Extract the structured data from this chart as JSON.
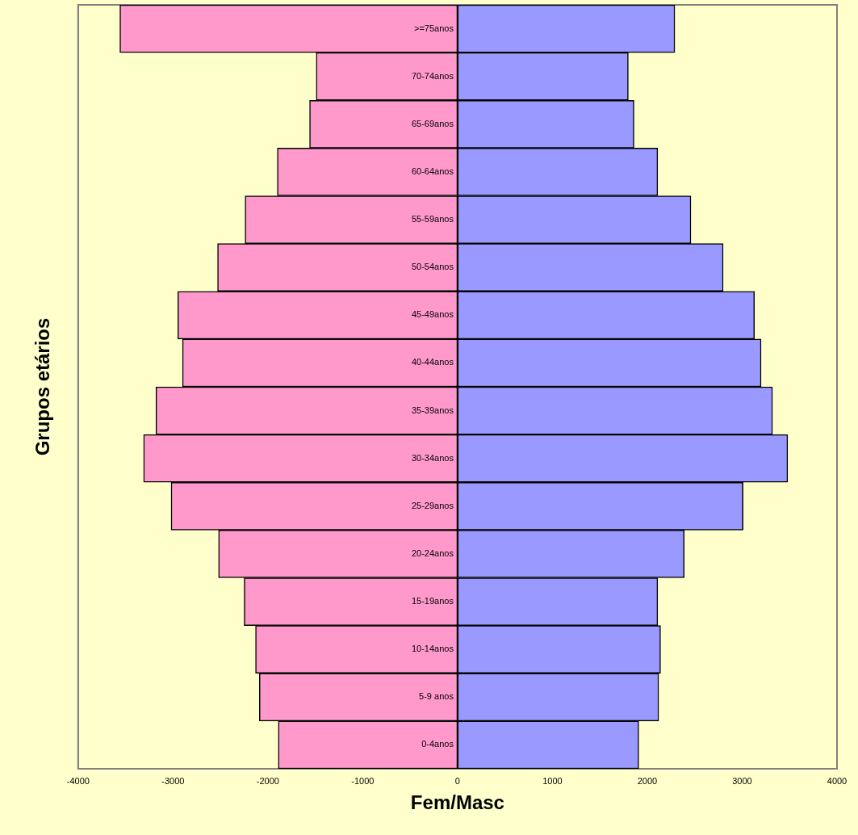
{
  "chart_data": {
    "type": "bar",
    "orientation": "horizontal",
    "stacked": true,
    "xlabel": "Fem/Masc",
    "ylabel": "Grupos etários",
    "categories": [
      ">=75anos",
      "70-74anos",
      "65-69anos",
      "60-64anos",
      "55-59anos",
      "50-54anos",
      "45-49anos",
      "40-44anos",
      "35-39anos",
      "30-34anos",
      "25-29anos",
      "20-24anos",
      "15-19anos",
      "10-14anos",
      "5-9 anos",
      "0-4anos"
    ],
    "series": [
      {
        "color": "#ff99cc",
        "values": [
          -3560,
          -1490,
          -1560,
          -1900,
          -2240,
          -2530,
          -2950,
          -2900,
          -3180,
          -3310,
          -3020,
          -2520,
          -2250,
          -2130,
          -2090,
          -1890
        ]
      },
      {
        "color": "#9999ff",
        "values": [
          2290,
          1800,
          1860,
          2110,
          2460,
          2800,
          3130,
          3200,
          3320,
          3480,
          3010,
          2390,
          2110,
          2140,
          2120,
          1910
        ]
      }
    ],
    "xlim": [
      -4000,
      4000
    ],
    "xticks": [
      -4000,
      -3000,
      -2000,
      -1000,
      0,
      1000,
      2000,
      3000,
      4000
    ],
    "grid": false,
    "legend": false
  }
}
